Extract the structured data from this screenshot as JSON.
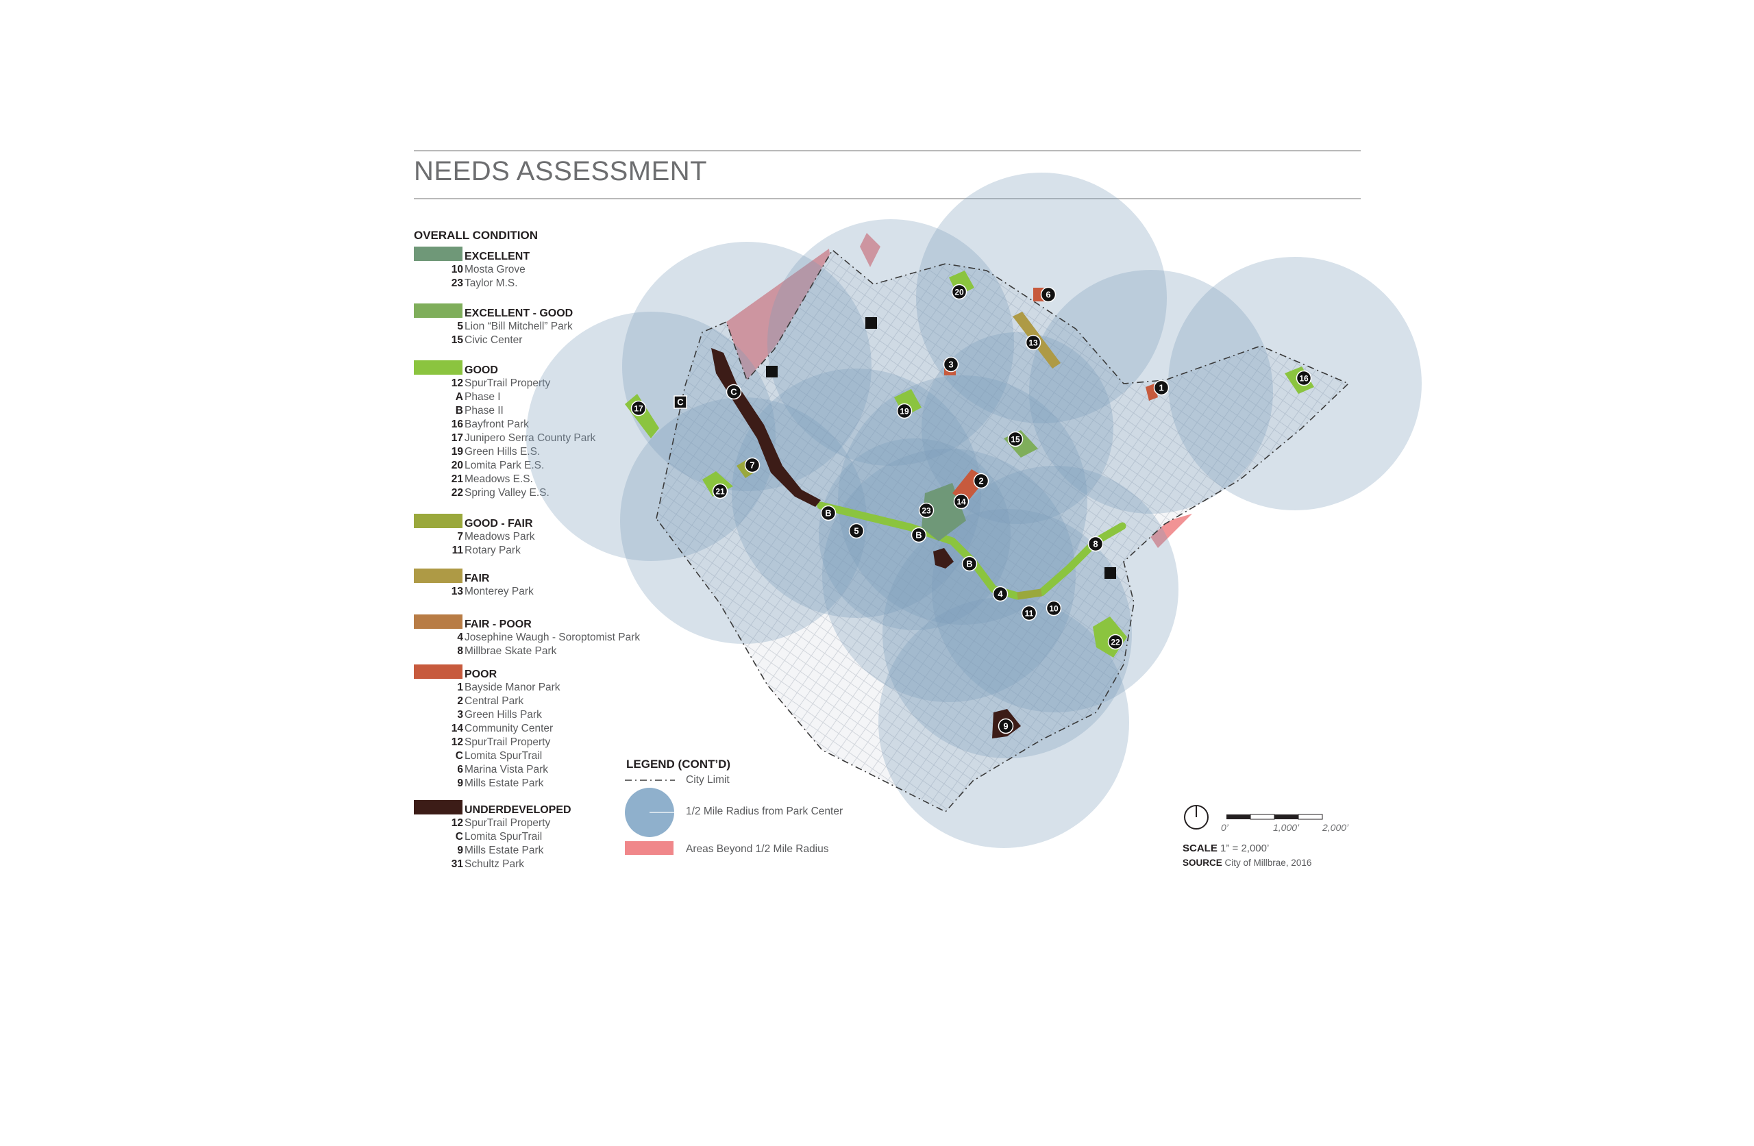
{
  "title": "NEEDS ASSESSMENT",
  "legend": {
    "heading": "OVERALL CONDITION",
    "categories": [
      {
        "label": "EXCELLENT",
        "color": "#6f9878",
        "items": [
          {
            "num": "10",
            "name": "Mosta Grove"
          },
          {
            "num": "23",
            "name": "Taylor M.S."
          }
        ]
      },
      {
        "label": "EXCELLENT - GOOD",
        "color": "#7fae5b",
        "items": [
          {
            "num": "5",
            "name": "Lion “Bill Mitchell” Park"
          },
          {
            "num": "15",
            "name": "Civic Center"
          }
        ]
      },
      {
        "label": "GOOD",
        "color": "#8bc43f",
        "items": [
          {
            "num": "12",
            "name": "SpurTrail Property"
          },
          {
            "num": "A",
            "name": "Phase I"
          },
          {
            "num": "B",
            "name": "Phase II"
          },
          {
            "num": "16",
            "name": "Bayfront Park"
          },
          {
            "num": "17",
            "name": "Junipero Serra County Park"
          },
          {
            "num": "19",
            "name": "Green Hills E.S."
          },
          {
            "num": "20",
            "name": "Lomita Park E.S."
          },
          {
            "num": "21",
            "name": "Meadows E.S."
          },
          {
            "num": "22",
            "name": "Spring Valley E.S."
          }
        ]
      },
      {
        "label": "GOOD - FAIR",
        "color": "#9aa83c",
        "items": [
          {
            "num": "7",
            "name": "Meadows Park"
          },
          {
            "num": "11",
            "name": "Rotary Park"
          }
        ]
      },
      {
        "label": "FAIR",
        "color": "#ae9a45",
        "items": [
          {
            "num": "13",
            "name": "Monterey Park"
          }
        ]
      },
      {
        "label": "FAIR - POOR",
        "color": "#b87c45",
        "items": [
          {
            "num": "4",
            "name": "Josephine Waugh - Soroptomist Park"
          },
          {
            "num": "8",
            "name": "Millbrae Skate Park"
          }
        ]
      },
      {
        "label": "POOR",
        "color": "#c75a3d",
        "items": [
          {
            "num": "1",
            "name": "Bayside Manor Park"
          },
          {
            "num": "2",
            "name": "Central Park"
          },
          {
            "num": "3",
            "name": "Green Hills Park"
          },
          {
            "num": "14",
            "name": "Community Center"
          },
          {
            "num": "12",
            "name": "SpurTrail Property"
          },
          {
            "num": "C",
            "name": "Lomita SpurTrail"
          },
          {
            "num": "6",
            "name": "Marina Vista Park"
          },
          {
            "num": "9",
            "name": "Mills Estate Park"
          }
        ]
      },
      {
        "label": "UNDERDEVELOPED",
        "color": "#3c1c17",
        "items": [
          {
            "num": "12",
            "name": "SpurTrail Property"
          },
          {
            "num": "C",
            "name": "Lomita SpurTrail"
          },
          {
            "num": "9",
            "name": "Mills Estate Park"
          },
          {
            "num": "31",
            "name": "Schultz Park"
          }
        ]
      }
    ]
  },
  "legend_contd": {
    "title": "LEGEND (CONT’D)",
    "city_limit": "City Limit",
    "radius": "1/2 Mile Radius from Park Center",
    "beyond": "Areas Beyond 1/2 Mile Radius",
    "radius_color": "#8fb0cc",
    "beyond_color": "#f0878a"
  },
  "scale": {
    "label_bold": "SCALE",
    "label": "1” = 2,000’",
    "ticks": [
      "0’",
      "1,000’",
      "2,000’"
    ],
    "source_bold": "SOURCE",
    "source": "City of Millbrae, 2016"
  },
  "markers": [
    {
      "label": "1"
    },
    {
      "label": "2"
    },
    {
      "label": "3"
    },
    {
      "label": "4"
    },
    {
      "label": "5"
    },
    {
      "label": "6"
    },
    {
      "label": "7"
    },
    {
      "label": "8"
    },
    {
      "label": "9"
    },
    {
      "label": "10"
    },
    {
      "label": "11"
    },
    {
      "label": "13"
    },
    {
      "label": "14"
    },
    {
      "label": "15"
    },
    {
      "label": "16"
    },
    {
      "label": "17"
    },
    {
      "label": "19"
    },
    {
      "label": "20"
    },
    {
      "label": "21"
    },
    {
      "label": "22"
    },
    {
      "label": "23"
    },
    {
      "label": "B"
    },
    {
      "label": "B"
    },
    {
      "label": "B"
    },
    {
      "label": "C"
    },
    {
      "label": "C"
    }
  ]
}
